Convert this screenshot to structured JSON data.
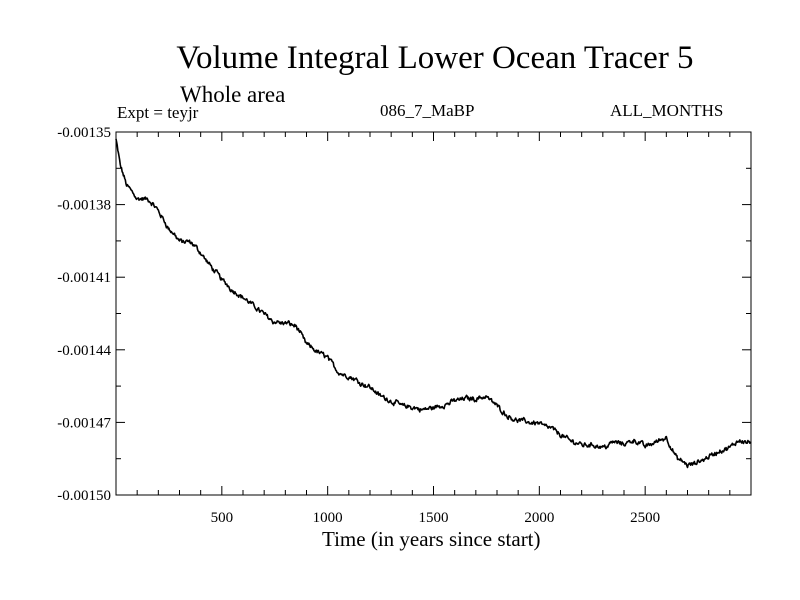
{
  "chart_data": {
    "type": "line",
    "title": "Volume Integral Lower Ocean Tracer 5",
    "subtitle": "Whole area",
    "experiment_label": "Expt = teyjr",
    "period_label": "086_7_MaBP",
    "months_label": "ALL_MONTHS",
    "xlabel": "Time (in years since start)",
    "ylabel": "",
    "xlim": [
      0,
      3000
    ],
    "ylim": [
      -0.0015,
      -0.00135
    ],
    "xticks": [
      500,
      1000,
      1500,
      2000,
      2500
    ],
    "xtick_labels": [
      "500",
      "1000",
      "1500",
      "2000",
      "2500"
    ],
    "yticks": [
      -0.00135,
      -0.00138,
      -0.00141,
      -0.00144,
      -0.00147,
      -0.0015
    ],
    "ytick_labels": [
      "-0.00135",
      "-0.00138",
      "-0.00141",
      "-0.00144",
      "-0.00147",
      "-0.00150"
    ],
    "series": [
      {
        "name": "Lower Ocean Tracer 5",
        "color": "#000000",
        "x": [
          0,
          20,
          50,
          100,
          150,
          200,
          250,
          300,
          350,
          400,
          450,
          500,
          550,
          600,
          650,
          700,
          750,
          800,
          850,
          900,
          950,
          1000,
          1050,
          1100,
          1150,
          1200,
          1250,
          1300,
          1350,
          1400,
          1450,
          1500,
          1550,
          1600,
          1650,
          1700,
          1750,
          1800,
          1850,
          1900,
          1950,
          2000,
          2050,
          2100,
          2150,
          2200,
          2250,
          2300,
          2350,
          2400,
          2450,
          2500,
          2550,
          2600,
          2650,
          2700,
          2750,
          2800,
          2850,
          2900,
          2950,
          3000
        ],
        "y": [
          -0.001353,
          -0.001364,
          -0.001372,
          -0.001377,
          -0.001378,
          -0.001383,
          -0.00139,
          -0.001395,
          -0.001396,
          -0.0014,
          -0.001406,
          -0.001411,
          -0.001415,
          -0.001418,
          -0.001422,
          -0.001425,
          -0.001428,
          -0.001429,
          -0.00143,
          -0.001438,
          -0.001441,
          -0.001443,
          -0.001449,
          -0.001451,
          -0.001453,
          -0.001455,
          -0.001459,
          -0.001461,
          -0.001463,
          -0.001464,
          -0.001465,
          -0.001464,
          -0.001463,
          -0.001461,
          -0.00146,
          -0.00146,
          -0.001459,
          -0.001463,
          -0.001467,
          -0.001469,
          -0.00147,
          -0.00147,
          -0.001472,
          -0.001475,
          -0.001478,
          -0.001479,
          -0.001479,
          -0.00148,
          -0.001478,
          -0.001479,
          -0.001477,
          -0.00148,
          -0.001478,
          -0.001476,
          -0.001485,
          -0.001488,
          -0.001487,
          -0.001484,
          -0.001482,
          -0.001481,
          -0.001477,
          -0.001478
        ]
      }
    ]
  }
}
